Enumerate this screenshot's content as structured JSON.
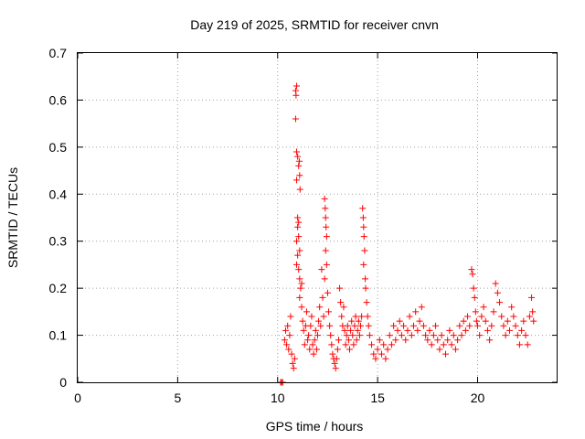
{
  "chart_data": {
    "type": "scatter",
    "title": "Day 219 of 2025, SRMTID for receiver cnvn",
    "xlabel": "GPS time / hours",
    "ylabel": "SRMTID / TECUs",
    "xlim": [
      0,
      24
    ],
    "ylim": [
      0,
      0.7
    ],
    "xticks": [
      "0",
      "5",
      "10",
      "15",
      "20"
    ],
    "yticks": [
      "0",
      "0.1",
      "0.2",
      "0.3",
      "0.4",
      "0.5",
      "0.6",
      "0.7"
    ],
    "grid": true,
    "marker": "plus",
    "color": "#ff0000",
    "series": [
      {
        "name": "SRMTID",
        "points": [
          [
            10.15,
            0.0
          ],
          [
            10.2,
            0.0
          ],
          [
            10.25,
            0.0
          ],
          [
            10.35,
            0.09
          ],
          [
            10.4,
            0.11
          ],
          [
            10.45,
            0.08
          ],
          [
            10.5,
            0.12
          ],
          [
            10.55,
            0.07
          ],
          [
            10.6,
            0.1
          ],
          [
            10.65,
            0.14
          ],
          [
            10.7,
            0.06
          ],
          [
            10.75,
            0.04
          ],
          [
            10.8,
            0.03
          ],
          [
            10.85,
            0.05
          ],
          [
            10.9,
            0.62
          ],
          [
            10.92,
            0.61
          ],
          [
            10.95,
            0.63
          ],
          [
            10.9,
            0.56
          ],
          [
            10.95,
            0.49
          ],
          [
            11.0,
            0.48
          ],
          [
            11.05,
            0.46
          ],
          [
            11.08,
            0.47
          ],
          [
            11.1,
            0.44
          ],
          [
            11.12,
            0.41
          ],
          [
            10.95,
            0.43
          ],
          [
            11.0,
            0.35
          ],
          [
            11.05,
            0.34
          ],
          [
            11.0,
            0.33
          ],
          [
            10.95,
            0.3
          ],
          [
            11.05,
            0.31
          ],
          [
            11.1,
            0.28
          ],
          [
            11.0,
            0.27
          ],
          [
            10.95,
            0.25
          ],
          [
            11.05,
            0.24
          ],
          [
            11.1,
            0.22
          ],
          [
            11.15,
            0.2
          ],
          [
            11.2,
            0.21
          ],
          [
            11.1,
            0.18
          ],
          [
            11.2,
            0.16
          ],
          [
            11.25,
            0.13
          ],
          [
            11.3,
            0.11
          ],
          [
            11.35,
            0.08
          ],
          [
            11.4,
            0.12
          ],
          [
            11.45,
            0.15
          ],
          [
            11.5,
            0.09
          ],
          [
            11.55,
            0.1
          ],
          [
            11.6,
            0.07
          ],
          [
            11.65,
            0.12
          ],
          [
            11.7,
            0.14
          ],
          [
            11.75,
            0.08
          ],
          [
            11.8,
            0.06
          ],
          [
            11.85,
            0.09
          ],
          [
            11.9,
            0.11
          ],
          [
            11.95,
            0.07
          ],
          [
            12.0,
            0.1
          ],
          [
            12.05,
            0.13
          ],
          [
            12.1,
            0.16
          ],
          [
            12.15,
            0.12
          ],
          [
            12.2,
            0.24
          ],
          [
            12.25,
            0.18
          ],
          [
            12.3,
            0.14
          ],
          [
            12.35,
            0.39
          ],
          [
            12.38,
            0.37
          ],
          [
            12.4,
            0.35
          ],
          [
            12.42,
            0.33
          ],
          [
            12.45,
            0.31
          ],
          [
            12.4,
            0.28
          ],
          [
            12.45,
            0.25
          ],
          [
            12.35,
            0.22
          ],
          [
            12.5,
            0.19
          ],
          [
            12.55,
            0.15
          ],
          [
            12.6,
            0.12
          ],
          [
            12.65,
            0.1
          ],
          [
            12.7,
            0.08
          ],
          [
            12.75,
            0.06
          ],
          [
            12.8,
            0.05
          ],
          [
            12.85,
            0.04
          ],
          [
            12.9,
            0.03
          ],
          [
            12.95,
            0.05
          ],
          [
            13.0,
            0.07
          ],
          [
            13.05,
            0.09
          ],
          [
            13.1,
            0.2
          ],
          [
            13.15,
            0.17
          ],
          [
            13.2,
            0.14
          ],
          [
            13.25,
            0.12
          ],
          [
            13.3,
            0.16
          ],
          [
            13.35,
            0.11
          ],
          [
            13.4,
            0.08
          ],
          [
            13.45,
            0.1
          ],
          [
            13.5,
            0.12
          ],
          [
            13.55,
            0.09
          ],
          [
            13.6,
            0.07
          ],
          [
            13.65,
            0.11
          ],
          [
            13.7,
            0.13
          ],
          [
            13.75,
            0.1
          ],
          [
            13.8,
            0.08
          ],
          [
            13.85,
            0.12
          ],
          [
            13.9,
            0.14
          ],
          [
            13.95,
            0.09
          ],
          [
            14.0,
            0.11
          ],
          [
            14.05,
            0.13
          ],
          [
            14.1,
            0.1
          ],
          [
            14.15,
            0.12
          ],
          [
            14.2,
            0.14
          ],
          [
            14.25,
            0.37
          ],
          [
            14.28,
            0.35
          ],
          [
            14.3,
            0.33
          ],
          [
            14.32,
            0.31
          ],
          [
            14.35,
            0.28
          ],
          [
            14.3,
            0.25
          ],
          [
            14.38,
            0.22
          ],
          [
            14.4,
            0.2
          ],
          [
            14.45,
            0.17
          ],
          [
            14.5,
            0.14
          ],
          [
            14.55,
            0.12
          ],
          [
            14.6,
            0.1
          ],
          [
            14.7,
            0.08
          ],
          [
            14.8,
            0.06
          ],
          [
            14.9,
            0.05
          ],
          [
            15.0,
            0.07
          ],
          [
            15.1,
            0.09
          ],
          [
            15.2,
            0.06
          ],
          [
            15.3,
            0.08
          ],
          [
            15.4,
            0.05
          ],
          [
            15.5,
            0.07
          ],
          [
            15.6,
            0.1
          ],
          [
            15.7,
            0.08
          ],
          [
            15.8,
            0.12
          ],
          [
            15.9,
            0.09
          ],
          [
            16.0,
            0.11
          ],
          [
            16.1,
            0.13
          ],
          [
            16.2,
            0.1
          ],
          [
            16.3,
            0.12
          ],
          [
            16.4,
            0.09
          ],
          [
            16.5,
            0.11
          ],
          [
            16.6,
            0.14
          ],
          [
            16.7,
            0.1
          ],
          [
            16.8,
            0.12
          ],
          [
            16.9,
            0.15
          ],
          [
            17.0,
            0.11
          ],
          [
            17.1,
            0.13
          ],
          [
            17.2,
            0.16
          ],
          [
            17.3,
            0.12
          ],
          [
            17.4,
            0.1
          ],
          [
            17.5,
            0.09
          ],
          [
            17.6,
            0.11
          ],
          [
            17.7,
            0.08
          ],
          [
            17.8,
            0.1
          ],
          [
            17.9,
            0.12
          ],
          [
            18.0,
            0.09
          ],
          [
            18.1,
            0.07
          ],
          [
            18.2,
            0.1
          ],
          [
            18.3,
            0.08
          ],
          [
            18.4,
            0.06
          ],
          [
            18.5,
            0.09
          ],
          [
            18.6,
            0.11
          ],
          [
            18.7,
            0.08
          ],
          [
            18.8,
            0.1
          ],
          [
            18.9,
            0.07
          ],
          [
            19.0,
            0.09
          ],
          [
            19.1,
            0.12
          ],
          [
            19.2,
            0.1
          ],
          [
            19.3,
            0.13
          ],
          [
            19.4,
            0.11
          ],
          [
            19.5,
            0.14
          ],
          [
            19.6,
            0.12
          ],
          [
            19.7,
            0.24
          ],
          [
            19.75,
            0.23
          ],
          [
            19.8,
            0.2
          ],
          [
            19.85,
            0.18
          ],
          [
            19.9,
            0.15
          ],
          [
            19.95,
            0.13
          ],
          [
            20.0,
            0.12
          ],
          [
            20.1,
            0.1
          ],
          [
            20.2,
            0.14
          ],
          [
            20.3,
            0.16
          ],
          [
            20.4,
            0.13
          ],
          [
            20.5,
            0.11
          ],
          [
            20.6,
            0.09
          ],
          [
            20.7,
            0.12
          ],
          [
            20.8,
            0.15
          ],
          [
            20.9,
            0.21
          ],
          [
            21.0,
            0.19
          ],
          [
            21.1,
            0.17
          ],
          [
            21.2,
            0.14
          ],
          [
            21.3,
            0.12
          ],
          [
            21.4,
            0.1
          ],
          [
            21.5,
            0.13
          ],
          [
            21.6,
            0.11
          ],
          [
            21.7,
            0.16
          ],
          [
            21.8,
            0.14
          ],
          [
            21.9,
            0.12
          ],
          [
            22.0,
            0.1
          ],
          [
            22.1,
            0.08
          ],
          [
            22.2,
            0.11
          ],
          [
            22.3,
            0.13
          ],
          [
            22.4,
            0.1
          ],
          [
            22.5,
            0.08
          ],
          [
            22.6,
            0.14
          ],
          [
            22.7,
            0.18
          ],
          [
            22.75,
            0.15
          ],
          [
            22.8,
            0.13
          ]
        ]
      }
    ]
  }
}
